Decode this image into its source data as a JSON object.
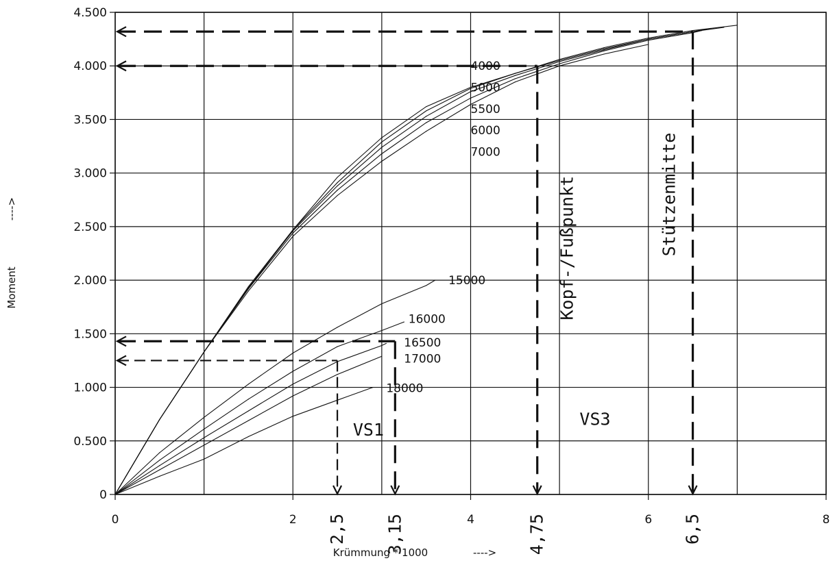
{
  "chart_data": {
    "type": "line",
    "xlabel": "Krümmung * 1000",
    "xlabel_arrow": "---->",
    "ylabel": "Moment",
    "ylabel_arrow": "---->",
    "xlim": [
      0,
      8
    ],
    "ylim": [
      0,
      4500
    ],
    "x_ticks": [
      0,
      2,
      4,
      6,
      8
    ],
    "x_tick_labels": [
      "0",
      "2",
      "4",
      "6",
      "8"
    ],
    "y_ticks": [
      0,
      500,
      1000,
      1500,
      2000,
      2500,
      3000,
      3500,
      4000,
      4500
    ],
    "y_tick_labels": [
      "0",
      "0.500",
      "1.000",
      "1.500",
      "2.000",
      "2.500",
      "3.000",
      "3.500",
      "4.000",
      "4.500"
    ],
    "grid": true,
    "grid_x_step": 1,
    "grid_y_step": 500,
    "series": [
      {
        "name": "4000",
        "x": [
          0,
          0.5,
          1,
          1.5,
          2,
          2.5,
          3,
          3.5,
          4,
          4.5,
          5,
          5.5,
          6,
          6.5,
          7
        ],
        "y": [
          0,
          700,
          1330,
          1920,
          2470,
          2960,
          3330,
          3620,
          3800,
          3930,
          4060,
          4170,
          4260,
          4330,
          4380
        ]
      },
      {
        "name": "5000",
        "x": [
          0,
          0.5,
          1,
          1.5,
          2,
          2.5,
          3,
          3.5,
          4,
          4.5,
          5,
          5.5,
          6,
          6.5,
          6.85
        ],
        "y": [
          0,
          700,
          1330,
          1940,
          2470,
          2910,
          3290,
          3580,
          3790,
          3930,
          4050,
          4160,
          4250,
          4320,
          4360
        ]
      },
      {
        "name": "5500",
        "x": [
          0,
          0.5,
          1,
          1.5,
          2,
          2.5,
          3,
          3.5,
          4,
          4.5,
          5,
          5.5,
          6,
          6.5,
          6.7
        ],
        "y": [
          0,
          700,
          1330,
          1930,
          2460,
          2880,
          3240,
          3530,
          3760,
          3910,
          4040,
          4150,
          4250,
          4320,
          4350
        ]
      },
      {
        "name": "6000",
        "x": [
          0,
          0.5,
          1,
          1.5,
          2,
          2.5,
          3,
          3.5,
          4,
          4.5,
          5,
          5.5,
          6,
          6.5,
          6.6
        ],
        "y": [
          0,
          700,
          1330,
          1920,
          2440,
          2840,
          3180,
          3470,
          3700,
          3880,
          4020,
          4140,
          4240,
          4310,
          4330
        ]
      },
      {
        "name": "7000",
        "x": [
          0,
          0.5,
          1,
          1.5,
          2,
          2.5,
          3,
          3.5,
          4,
          4.5,
          5,
          5.5,
          6
        ],
        "y": [
          0,
          700,
          1330,
          1900,
          2410,
          2790,
          3110,
          3390,
          3640,
          3850,
          4000,
          4110,
          4200
        ]
      },
      {
        "name": "15000",
        "x": [
          0,
          0.5,
          1,
          1.5,
          2,
          2.5,
          3,
          3.5,
          3.6
        ],
        "y": [
          0,
          390,
          720,
          1030,
          1320,
          1560,
          1780,
          1950,
          2000
        ]
      },
      {
        "name": "16000",
        "x": [
          0,
          0.5,
          1,
          1.5,
          2,
          2.5,
          3,
          3.25
        ],
        "y": [
          0,
          320,
          610,
          890,
          1150,
          1380,
          1530,
          1610
        ]
      },
      {
        "name": "16500",
        "x": [
          0,
          0.5,
          1,
          1.5,
          2,
          2.5,
          3,
          3.05
        ],
        "y": [
          0,
          270,
          530,
          780,
          1030,
          1240,
          1390,
          1410
        ]
      },
      {
        "name": "17000",
        "x": [
          0,
          0.5,
          1,
          1.5,
          2,
          2.5,
          3
        ],
        "y": [
          0,
          230,
          460,
          690,
          920,
          1120,
          1290
        ]
      },
      {
        "name": "18000",
        "x": [
          0,
          0.5,
          1,
          1.5,
          2,
          2.5,
          2.9
        ],
        "y": [
          0,
          170,
          330,
          540,
          730,
          880,
          1000
        ]
      }
    ],
    "series_labels": [
      {
        "text": "4000",
        "x": 4.0,
        "y": 4000
      },
      {
        "text": "5000",
        "x": 4.0,
        "y": 3800
      },
      {
        "text": "5500",
        "x": 4.0,
        "y": 3600
      },
      {
        "text": "6000",
        "x": 4.0,
        "y": 3400
      },
      {
        "text": "7000",
        "x": 4.0,
        "y": 3200
      },
      {
        "text": "15000",
        "x": 3.75,
        "y": 2000
      },
      {
        "text": "16000",
        "x": 3.3,
        "y": 1640
      },
      {
        "text": "16500",
        "x": 3.25,
        "y": 1420
      },
      {
        "text": "17000",
        "x": 3.25,
        "y": 1270
      },
      {
        "text": "18000",
        "x": 3.05,
        "y": 995
      }
    ],
    "annotations": {
      "reference_lines": [
        {
          "x": 2.5,
          "y": 1250,
          "style": "dashed"
        },
        {
          "x": 3.15,
          "y": 1430,
          "style": "dashed-bold"
        },
        {
          "x": 4.75,
          "y": 4000,
          "style": "dashed-bold"
        },
        {
          "x": 6.5,
          "y": 4320,
          "style": "dashed-bold"
        }
      ],
      "x_marks": [
        {
          "text": "2,5",
          "x": 2.5
        },
        {
          "text": "3,15",
          "x": 3.15
        },
        {
          "text": "4,75",
          "x": 4.75
        },
        {
          "text": "6,5",
          "x": 6.5
        }
      ],
      "regions": [
        {
          "text": "VS1",
          "x": 2.85,
          "y": 550
        },
        {
          "text": "VS3",
          "x": 5.4,
          "y": 650
        }
      ],
      "vertical_text": [
        {
          "text": "Kopf-/Fußpunkt",
          "x": 5.15,
          "y": 2300
        },
        {
          "text": "Stützenmitte",
          "x": 6.3,
          "y": 2800
        }
      ]
    }
  }
}
